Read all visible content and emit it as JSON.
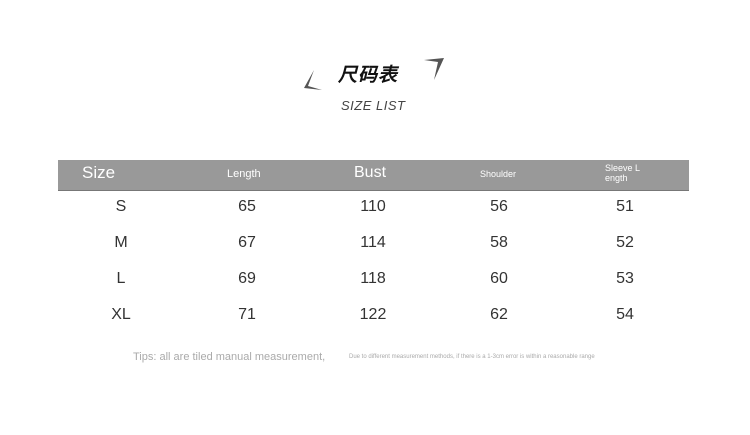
{
  "title": "尺码表",
  "subtitle": "SIZE LIST",
  "table": {
    "headers": [
      "Size",
      "Length",
      "Bust",
      "Shoulder",
      "Sleeve L\nength"
    ],
    "rows": [
      [
        "S",
        "65",
        "110",
        "56",
        "51"
      ],
      [
        "M",
        "67",
        "114",
        "58",
        "52"
      ],
      [
        "L",
        "69",
        "118",
        "60",
        "53"
      ],
      [
        "XL",
        "71",
        "122",
        "62",
        "54"
      ]
    ]
  },
  "tips": "Tips: all are tiled manual measurement,",
  "note": "Due to different measurement methods, if there is a 1-3cm error is within a reasonable range",
  "colors": {
    "header_bg": "#999999",
    "header_text": "#ffffff"
  }
}
